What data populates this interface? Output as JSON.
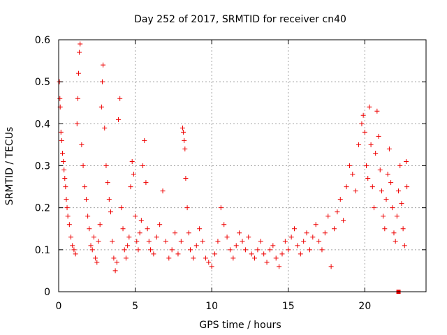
{
  "chart_data": {
    "type": "scatter",
    "title": "Day 252 of 2017, SRMTID for receiver cn40",
    "xlabel": "GPS time / hours",
    "ylabel": "SRMTID / TECUs",
    "xlim": [
      0,
      24
    ],
    "ylim": [
      0,
      0.6
    ],
    "x_ticks": [
      0,
      5,
      10,
      15,
      20
    ],
    "x_tick_labels": [
      "0",
      "5",
      "10",
      "15",
      "20"
    ],
    "y_ticks": [
      0,
      0.1,
      0.2,
      0.3,
      0.4,
      0.5,
      0.6
    ],
    "y_tick_labels": [
      "0",
      "0.1",
      "0.2",
      "0.3",
      "0.4",
      "0.5",
      "0.6"
    ],
    "grid": true,
    "marker": "plus",
    "color": "#ee0000",
    "series": [
      {
        "name": "SRMTID",
        "points": [
          [
            0.05,
            0.5
          ],
          [
            0.08,
            0.46
          ],
          [
            0.1,
            0.44
          ],
          [
            0.15,
            0.38
          ],
          [
            0.2,
            0.36
          ],
          [
            0.25,
            0.33
          ],
          [
            0.3,
            0.31
          ],
          [
            0.35,
            0.29
          ],
          [
            0.4,
            0.27
          ],
          [
            0.45,
            0.25
          ],
          [
            0.5,
            0.22
          ],
          [
            0.55,
            0.2
          ],
          [
            0.6,
            0.18
          ],
          [
            0.7,
            0.16
          ],
          [
            0.8,
            0.13
          ],
          [
            0.9,
            0.11
          ],
          [
            1.0,
            0.1
          ],
          [
            1.1,
            0.09
          ],
          [
            1.2,
            0.4
          ],
          [
            1.25,
            0.46
          ],
          [
            1.3,
            0.52
          ],
          [
            1.35,
            0.57
          ],
          [
            1.4,
            0.59
          ],
          [
            1.5,
            0.35
          ],
          [
            1.6,
            0.3
          ],
          [
            1.7,
            0.25
          ],
          [
            1.8,
            0.22
          ],
          [
            1.9,
            0.18
          ],
          [
            2.0,
            0.15
          ],
          [
            2.1,
            0.11
          ],
          [
            2.2,
            0.1
          ],
          [
            2.3,
            0.13
          ],
          [
            2.4,
            0.08
          ],
          [
            2.5,
            0.07
          ],
          [
            2.6,
            0.12
          ],
          [
            2.7,
            0.16
          ],
          [
            2.8,
            0.44
          ],
          [
            2.85,
            0.5
          ],
          [
            2.9,
            0.54
          ],
          [
            3.0,
            0.39
          ],
          [
            3.1,
            0.3
          ],
          [
            3.2,
            0.26
          ],
          [
            3.3,
            0.22
          ],
          [
            3.4,
            0.19
          ],
          [
            3.5,
            0.12
          ],
          [
            3.6,
            0.08
          ],
          [
            3.7,
            0.05
          ],
          [
            3.8,
            0.07
          ],
          [
            3.9,
            0.41
          ],
          [
            4.0,
            0.46
          ],
          [
            4.1,
            0.2
          ],
          [
            4.2,
            0.15
          ],
          [
            4.3,
            0.1
          ],
          [
            4.4,
            0.08
          ],
          [
            4.5,
            0.11
          ],
          [
            4.6,
            0.13
          ],
          [
            4.7,
            0.25
          ],
          [
            4.8,
            0.31
          ],
          [
            4.9,
            0.28
          ],
          [
            5.0,
            0.18
          ],
          [
            5.1,
            0.12
          ],
          [
            5.2,
            0.1
          ],
          [
            5.3,
            0.14
          ],
          [
            5.4,
            0.17
          ],
          [
            5.5,
            0.3
          ],
          [
            5.6,
            0.36
          ],
          [
            5.7,
            0.26
          ],
          [
            5.8,
            0.15
          ],
          [
            5.9,
            0.12
          ],
          [
            6.0,
            0.1
          ],
          [
            6.2,
            0.09
          ],
          [
            6.4,
            0.13
          ],
          [
            6.6,
            0.16
          ],
          [
            6.8,
            0.24
          ],
          [
            7.0,
            0.12
          ],
          [
            7.2,
            0.08
          ],
          [
            7.4,
            0.1
          ],
          [
            7.6,
            0.14
          ],
          [
            7.8,
            0.09
          ],
          [
            8.0,
            0.12
          ],
          [
            8.1,
            0.39
          ],
          [
            8.15,
            0.38
          ],
          [
            8.2,
            0.36
          ],
          [
            8.25,
            0.34
          ],
          [
            8.3,
            0.27
          ],
          [
            8.4,
            0.2
          ],
          [
            8.5,
            0.14
          ],
          [
            8.6,
            0.1
          ],
          [
            8.8,
            0.08
          ],
          [
            9.0,
            0.11
          ],
          [
            9.2,
            0.15
          ],
          [
            9.4,
            0.12
          ],
          [
            9.6,
            0.08
          ],
          [
            9.8,
            0.07
          ],
          [
            10.0,
            0.06
          ],
          [
            10.2,
            0.09
          ],
          [
            10.4,
            0.12
          ],
          [
            10.6,
            0.2
          ],
          [
            10.8,
            0.16
          ],
          [
            11.0,
            0.13
          ],
          [
            11.2,
            0.1
          ],
          [
            11.4,
            0.08
          ],
          [
            11.6,
            0.11
          ],
          [
            11.8,
            0.14
          ],
          [
            12.0,
            0.12
          ],
          [
            12.2,
            0.1
          ],
          [
            12.4,
            0.13
          ],
          [
            12.6,
            0.09
          ],
          [
            12.8,
            0.08
          ],
          [
            13.0,
            0.1
          ],
          [
            13.2,
            0.12
          ],
          [
            13.4,
            0.09
          ],
          [
            13.6,
            0.07
          ],
          [
            13.8,
            0.1
          ],
          [
            14.0,
            0.11
          ],
          [
            14.2,
            0.08
          ],
          [
            14.4,
            0.06
          ],
          [
            14.6,
            0.09
          ],
          [
            14.8,
            0.12
          ],
          [
            15.0,
            0.1
          ],
          [
            15.2,
            0.13
          ],
          [
            15.4,
            0.15
          ],
          [
            15.6,
            0.11
          ],
          [
            15.8,
            0.09
          ],
          [
            16.0,
            0.12
          ],
          [
            16.2,
            0.14
          ],
          [
            16.4,
            0.1
          ],
          [
            16.6,
            0.13
          ],
          [
            16.8,
            0.16
          ],
          [
            17.0,
            0.12
          ],
          [
            17.2,
            0.1
          ],
          [
            17.4,
            0.14
          ],
          [
            17.6,
            0.18
          ],
          [
            17.8,
            0.06
          ],
          [
            18.0,
            0.15
          ],
          [
            18.2,
            0.19
          ],
          [
            18.4,
            0.22
          ],
          [
            18.6,
            0.17
          ],
          [
            18.8,
            0.25
          ],
          [
            19.0,
            0.3
          ],
          [
            19.2,
            0.28
          ],
          [
            19.4,
            0.24
          ],
          [
            19.6,
            0.35
          ],
          [
            19.8,
            0.4
          ],
          [
            19.9,
            0.42
          ],
          [
            20.0,
            0.38
          ],
          [
            20.1,
            0.3
          ],
          [
            20.2,
            0.27
          ],
          [
            20.3,
            0.44
          ],
          [
            20.4,
            0.35
          ],
          [
            20.5,
            0.25
          ],
          [
            20.6,
            0.2
          ],
          [
            20.7,
            0.33
          ],
          [
            20.8,
            0.43
          ],
          [
            20.9,
            0.37
          ],
          [
            21.0,
            0.29
          ],
          [
            21.1,
            0.24
          ],
          [
            21.2,
            0.18
          ],
          [
            21.3,
            0.15
          ],
          [
            21.4,
            0.22
          ],
          [
            21.5,
            0.28
          ],
          [
            21.6,
            0.34
          ],
          [
            21.7,
            0.26
          ],
          [
            21.8,
            0.2
          ],
          [
            21.9,
            0.14
          ],
          [
            22.0,
            0.12
          ],
          [
            22.1,
            0.18
          ],
          [
            22.2,
            0.24
          ],
          [
            22.3,
            0.3
          ],
          [
            22.4,
            0.21
          ],
          [
            22.5,
            0.15
          ],
          [
            22.6,
            0.11
          ],
          [
            22.7,
            0.31
          ],
          [
            22.75,
            0.25
          ]
        ]
      }
    ],
    "outlier": {
      "x": 22.2,
      "y": 0.0
    }
  }
}
